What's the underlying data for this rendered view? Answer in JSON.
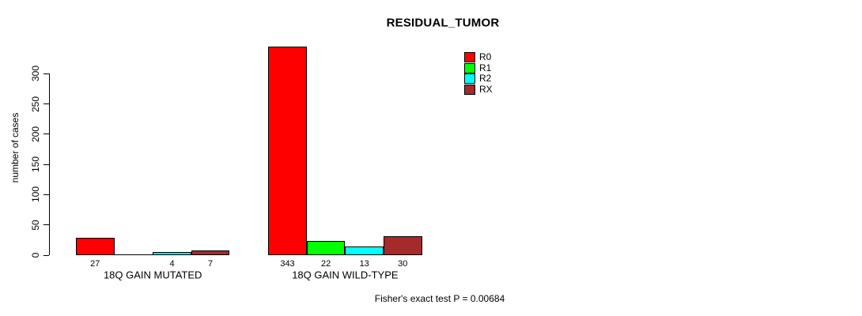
{
  "chart_data": {
    "type": "bar",
    "title": "RESIDUAL_TUMOR",
    "ylabel": "number of cases",
    "xlabel": "",
    "ylim": [
      0,
      300
    ],
    "yticks": [
      0,
      50,
      100,
      150,
      200,
      250,
      300
    ],
    "grid": false,
    "legend_position": "top-right",
    "bar_border_color": "#000000",
    "categories": [
      "18Q GAIN MUTATED",
      "18Q GAIN WILD-TYPE"
    ],
    "series": [
      {
        "name": "R0",
        "color": "#FF0000",
        "values": [
          27,
          343
        ]
      },
      {
        "name": "R1",
        "color": "#00FF00",
        "values": [
          0,
          22
        ]
      },
      {
        "name": "R2",
        "color": "#00FFFF",
        "values": [
          4,
          13
        ]
      },
      {
        "name": "RX",
        "color": "#A52A2A",
        "values": [
          7,
          30
        ]
      }
    ],
    "value_labels": [
      [
        "27",
        "",
        "4",
        "7"
      ],
      [
        "343",
        "22",
        "13",
        "30"
      ]
    ],
    "footnote": "Fisher's exact test P = 0.00684"
  }
}
